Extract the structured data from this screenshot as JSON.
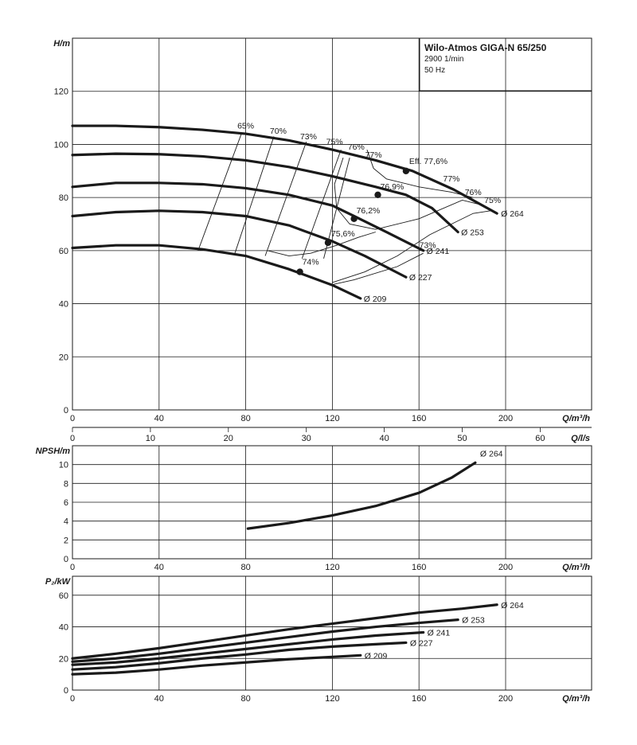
{
  "title_box": {
    "title": "Wilo-Atmos GIGA-N 65/250",
    "speed": "2900 1/min",
    "frequency": "50 Hz"
  },
  "chart_data": [
    {
      "type": "line",
      "name": "head",
      "ylabel": "H/m",
      "xlabel": "Q/m³/h",
      "xlim": [
        0,
        240
      ],
      "ylim": [
        0,
        140
      ],
      "xticks": [
        0,
        40,
        80,
        120,
        160,
        200
      ],
      "yticks": [
        0,
        20,
        40,
        60,
        80,
        100,
        120
      ],
      "grid": true,
      "series": [
        {
          "name": "Ø 264",
          "x": [
            0,
            20,
            40,
            60,
            80,
            100,
            120,
            140,
            157,
            176,
            196
          ],
          "y": [
            107,
            107,
            106.5,
            105.5,
            104,
            101.5,
            98,
            94,
            90,
            83,
            74
          ]
        },
        {
          "name": "Ø 253",
          "x": [
            0,
            20,
            40,
            60,
            80,
            100,
            120,
            140,
            154,
            166,
            178
          ],
          "y": [
            96,
            96.5,
            96.3,
            95.5,
            94,
            91.5,
            88,
            84,
            81,
            76,
            67
          ]
        },
        {
          "name": "Ø 241",
          "x": [
            0,
            20,
            40,
            60,
            80,
            100,
            120,
            130,
            145,
            162
          ],
          "y": [
            84,
            85.5,
            85.5,
            85,
            83.5,
            81,
            77,
            73,
            67,
            60
          ]
        },
        {
          "name": "Ø 227",
          "x": [
            0,
            20,
            40,
            60,
            80,
            100,
            120,
            135,
            154
          ],
          "y": [
            73,
            74.5,
            75,
            74.5,
            73,
            69.5,
            63.5,
            58,
            50
          ]
        },
        {
          "name": "Ø 209",
          "x": [
            0,
            20,
            40,
            60,
            80,
            100,
            120,
            133
          ],
          "y": [
            61,
            62,
            62,
            60.5,
            58,
            53,
            47,
            42
          ]
        }
      ],
      "bep_points": [
        {
          "label": "Eff. 77,6%",
          "x": 154,
          "y": 90
        },
        {
          "label": "76,9%",
          "x": 141,
          "y": 81
        },
        {
          "label": "76,2%",
          "x": 130,
          "y": 72
        },
        {
          "label": "75,6%",
          "x": 118,
          "y": 63
        },
        {
          "label": "74%",
          "x": 105,
          "y": 52
        }
      ],
      "efficiency_labels": [
        "65%",
        "70%",
        "73%",
        "75%",
        "76%",
        "77%",
        "77%",
        "76%",
        "75%",
        "73%"
      ]
    },
    {
      "type": "line",
      "name": "flow_conversion",
      "xlabel": "Q/l/s",
      "xlim": [
        0,
        66.7
      ],
      "xticks": [
        0,
        10,
        20,
        30,
        40,
        50,
        60
      ]
    },
    {
      "type": "line",
      "name": "npsh",
      "ylabel": "NPSH/m",
      "xlabel": "Q/m³/h",
      "xlim": [
        0,
        240
      ],
      "ylim": [
        0,
        12
      ],
      "xticks": [
        0,
        40,
        80,
        120,
        160,
        200
      ],
      "yticks": [
        0,
        2,
        4,
        6,
        8,
        10
      ],
      "grid": true,
      "series": [
        {
          "name": "Ø 264",
          "x": [
            81,
            100,
            120,
            140,
            160,
            175,
            186
          ],
          "y": [
            3.2,
            3.8,
            4.6,
            5.6,
            7.0,
            8.6,
            10.2
          ]
        }
      ]
    },
    {
      "type": "line",
      "name": "power",
      "ylabel": "P₂/kW",
      "xlabel": "Q/m³/h",
      "xlim": [
        0,
        240
      ],
      "ylim": [
        0,
        72
      ],
      "xticks": [
        0,
        40,
        80,
        120,
        160,
        200
      ],
      "yticks": [
        0,
        20,
        40,
        60
      ],
      "grid": true,
      "series": [
        {
          "name": "Ø 264",
          "x": [
            0,
            20,
            40,
            60,
            80,
            100,
            120,
            140,
            160,
            180,
            196
          ],
          "y": [
            20,
            23,
            26.5,
            30.5,
            34.5,
            38.5,
            42,
            45.5,
            49,
            51.5,
            54
          ]
        },
        {
          "name": "Ø 253",
          "x": [
            0,
            20,
            40,
            60,
            80,
            100,
            120,
            140,
            160,
            178
          ],
          "y": [
            18,
            20,
            23,
            26.5,
            30,
            33.5,
            37,
            40,
            42.5,
            44.5
          ]
        },
        {
          "name": "Ø 241",
          "x": [
            0,
            20,
            40,
            60,
            80,
            100,
            120,
            140,
            162
          ],
          "y": [
            16,
            17.5,
            20,
            23,
            26,
            29,
            32,
            34.5,
            36.5
          ]
        },
        {
          "name": "Ø 227",
          "x": [
            0,
            20,
            40,
            60,
            80,
            100,
            120,
            140,
            154
          ],
          "y": [
            13,
            14.5,
            17,
            20,
            22.5,
            25.5,
            27.5,
            29,
            30
          ]
        },
        {
          "name": "Ø 209",
          "x": [
            0,
            20,
            40,
            60,
            80,
            100,
            120,
            133
          ],
          "y": [
            10,
            11,
            13,
            15.5,
            17.5,
            19.5,
            21,
            22
          ]
        }
      ]
    }
  ]
}
